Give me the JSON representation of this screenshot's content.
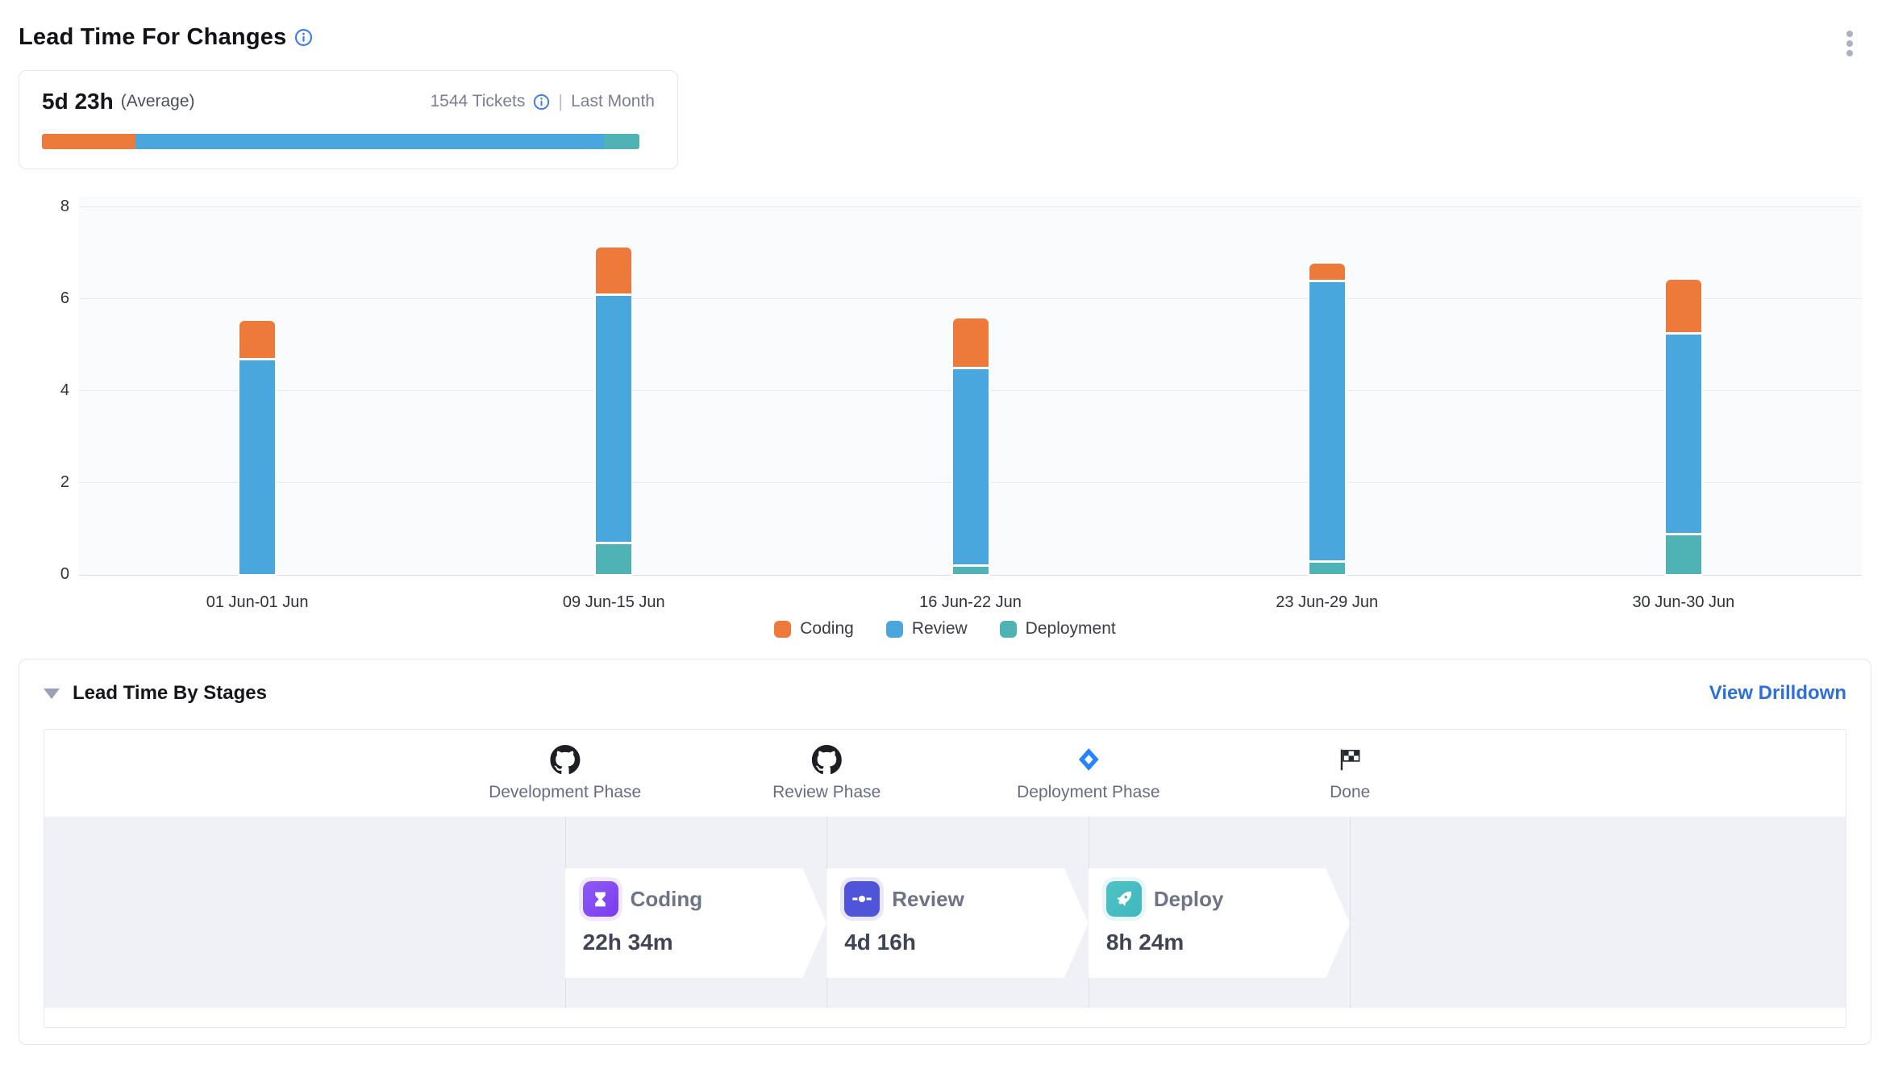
{
  "header": {
    "title": "Lead Time For Changes"
  },
  "summary": {
    "value": "5d 23h",
    "value_label": "(Average)",
    "tickets": "1544 Tickets",
    "separator": "|",
    "period": "Last Month",
    "bar_segments": [
      {
        "name": "coding",
        "color": "#ED7A3B",
        "pct": 15.7
      },
      {
        "name": "review",
        "color": "#4AA7DE",
        "pct": 78.4
      },
      {
        "name": "deployment",
        "color": "#4FB3B5",
        "pct": 5.9
      }
    ]
  },
  "chart_data": {
    "type": "bar",
    "stacked": true,
    "categories": [
      "01 Jun-01 Jun",
      "09 Jun-15 Jun",
      "16 Jun-22 Jun",
      "23 Jun-29 Jun",
      "30 Jun-30 Jun"
    ],
    "series": [
      {
        "name": "Coding",
        "color": "#ED7A3B",
        "values": [
          0.8,
          1.0,
          1.05,
          0.35,
          1.15
        ]
      },
      {
        "name": "Review",
        "color": "#4AA7DE",
        "values": [
          4.65,
          5.35,
          4.25,
          6.05,
          4.3
        ]
      },
      {
        "name": "Deployment",
        "color": "#4FB3B5",
        "values": [
          0,
          0.65,
          0.15,
          0.25,
          0.85
        ]
      }
    ],
    "stack_order_bottom_to_top": [
      "Deployment",
      "Review",
      "Coding"
    ],
    "title": "",
    "xlabel": "",
    "ylabel": "",
    "ylim": [
      0,
      8
    ],
    "yticks": [
      0,
      2,
      4,
      6,
      8
    ],
    "grid": true,
    "legend_position": "bottom"
  },
  "stages": {
    "title": "Lead Time By Stages",
    "link": "View Drilldown",
    "phases": [
      {
        "label": "Development Phase",
        "icon": "github-icon"
      },
      {
        "label": "Review Phase",
        "icon": "github-icon"
      },
      {
        "label": "Deployment Phase",
        "icon": "diamond-icon"
      },
      {
        "label": "Done",
        "icon": "checkered-flag-icon"
      }
    ],
    "cards": [
      {
        "name": "Coding",
        "time": "22h 34m",
        "icon": "hourglass-icon",
        "color": "#8B5CF6",
        "color2": "#7C3BEF"
      },
      {
        "name": "Review",
        "time": "4d 16h",
        "icon": "git-commit-icon",
        "color": "#4F54D8",
        "color2": "#4F54D8"
      },
      {
        "name": "Deploy",
        "time": "8h 24m",
        "icon": "rocket-icon",
        "color": "#4EC3C4",
        "color2": "#3FB7BF"
      }
    ]
  }
}
